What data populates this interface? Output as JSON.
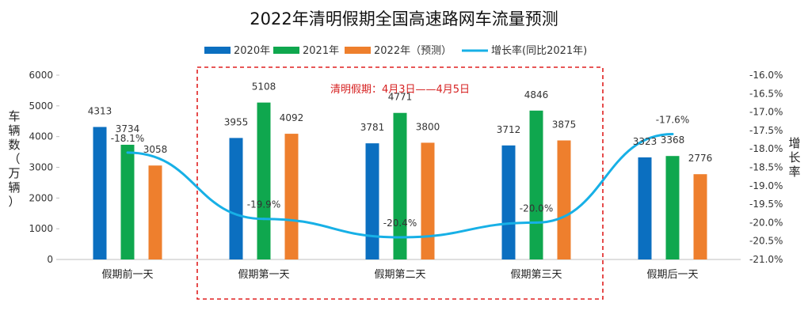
{
  "chart_data": {
    "type": "bar",
    "title": "2022年清明假期全国高速路网车流量预测",
    "categories": [
      "假期前一天",
      "假期第一天",
      "假期第二天",
      "假期第三天",
      "假期后一天"
    ],
    "series": [
      {
        "name": "2020年",
        "color": "#0b6fc0",
        "values": [
          4313,
          3955,
          3781,
          3712,
          3323
        ]
      },
      {
        "name": "2021年",
        "color": "#0fa74e",
        "values": [
          3734,
          5108,
          4771,
          4846,
          3368
        ]
      },
      {
        "name": "2022年（预测）",
        "color": "#ee7f2d",
        "values": [
          3058,
          4092,
          3800,
          3875,
          2776
        ]
      }
    ],
    "line_series": {
      "name": "增长率(同比2021年)",
      "color": "#17b0e6",
      "values": [
        -18.1,
        -19.9,
        -20.4,
        -20.0,
        -17.6
      ],
      "labels": [
        "-18.1%",
        "-19.9%",
        "-20.4%",
        "-20.0%",
        "-17.6%"
      ]
    },
    "y_left": {
      "label": "车辆数（万辆）",
      "min": 0,
      "max": 6000,
      "ticks": [
        "0",
        "1000",
        "2000",
        "3000",
        "4000",
        "5000",
        "6000"
      ]
    },
    "y_right": {
      "label": "增长率",
      "min": -21.0,
      "max": -16.0,
      "ticks": [
        "-16.0%",
        "-16.5%",
        "-17.0%",
        "-17.5%",
        "-18.0%",
        "-18.5%",
        "-19.0%",
        "-19.5%",
        "-20.0%",
        "-20.5%",
        "-21.0%"
      ]
    },
    "annotation": "清明假期：4月3日——4月5日",
    "highlight_range": [
      "假期第一天",
      "假期第三天"
    ],
    "grid": false,
    "legend_position": "top-center"
  }
}
